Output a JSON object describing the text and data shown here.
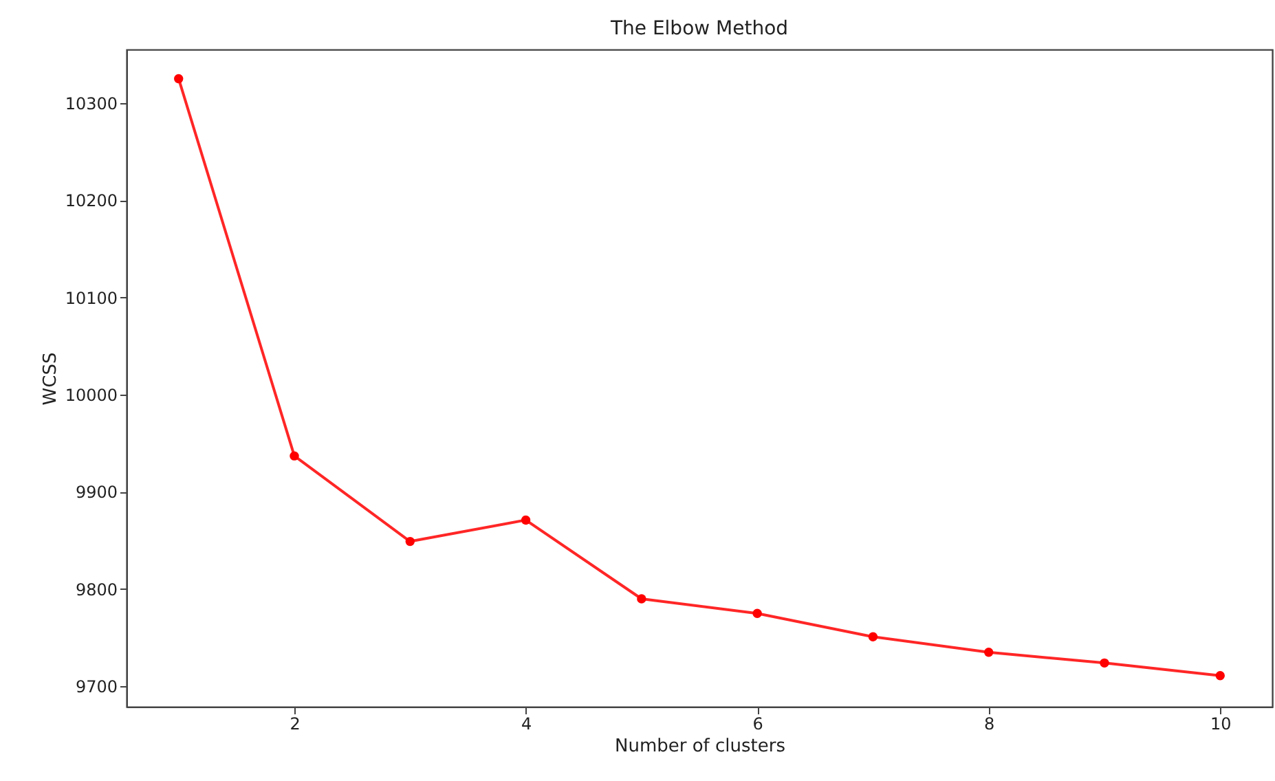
{
  "chart_data": {
    "type": "line",
    "title": "The Elbow Method",
    "xlabel": "Number of clusters",
    "ylabel": "WCSS",
    "x": [
      1,
      2,
      3,
      4,
      5,
      6,
      7,
      8,
      9,
      10
    ],
    "series": [
      {
        "color": "#ff0000",
        "values": [
          10325,
          9937,
          9849,
          9871,
          9790,
          9775,
          9751,
          9735,
          9724,
          9711
        ]
      }
    ],
    "xlim": [
      0.55,
      10.45
    ],
    "xticks": [
      2,
      4,
      6,
      8,
      10
    ],
    "ylim": [
      9679,
      10355
    ],
    "yticks": [
      9700,
      9800,
      9900,
      10000,
      10100,
      10200,
      10300
    ],
    "grid": false,
    "legend": false,
    "marker": "circle",
    "line_style": "solid"
  }
}
